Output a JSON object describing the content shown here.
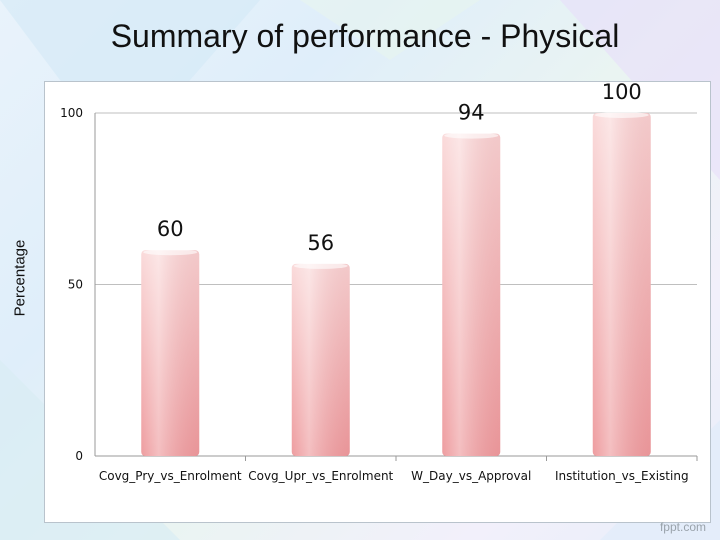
{
  "slide": {
    "title": "Summary of performance - Physical",
    "footer": "fppt.com"
  },
  "colors": {
    "bar_top": "#fadada",
    "bar_bottom": "#ee9c9f",
    "grid": "#bfbfbf"
  },
  "chart_data": {
    "type": "bar",
    "title": "",
    "xlabel": "",
    "ylabel": "Percentage",
    "categories": [
      "Covg_Pry_vs_Enrolment",
      "Covg_Upr_vs_Enrolment",
      "W_Day_vs_Approval",
      "Institution_vs_Existing"
    ],
    "values": [
      60,
      56,
      94,
      100
    ],
    "data_labels": [
      "60",
      "56",
      "94",
      "100"
    ],
    "ylim": [
      0,
      100
    ],
    "yticks": [
      0,
      50,
      100
    ],
    "ytick_labels": [
      "0",
      "50",
      "100"
    ],
    "grid": true,
    "legend": "none"
  }
}
